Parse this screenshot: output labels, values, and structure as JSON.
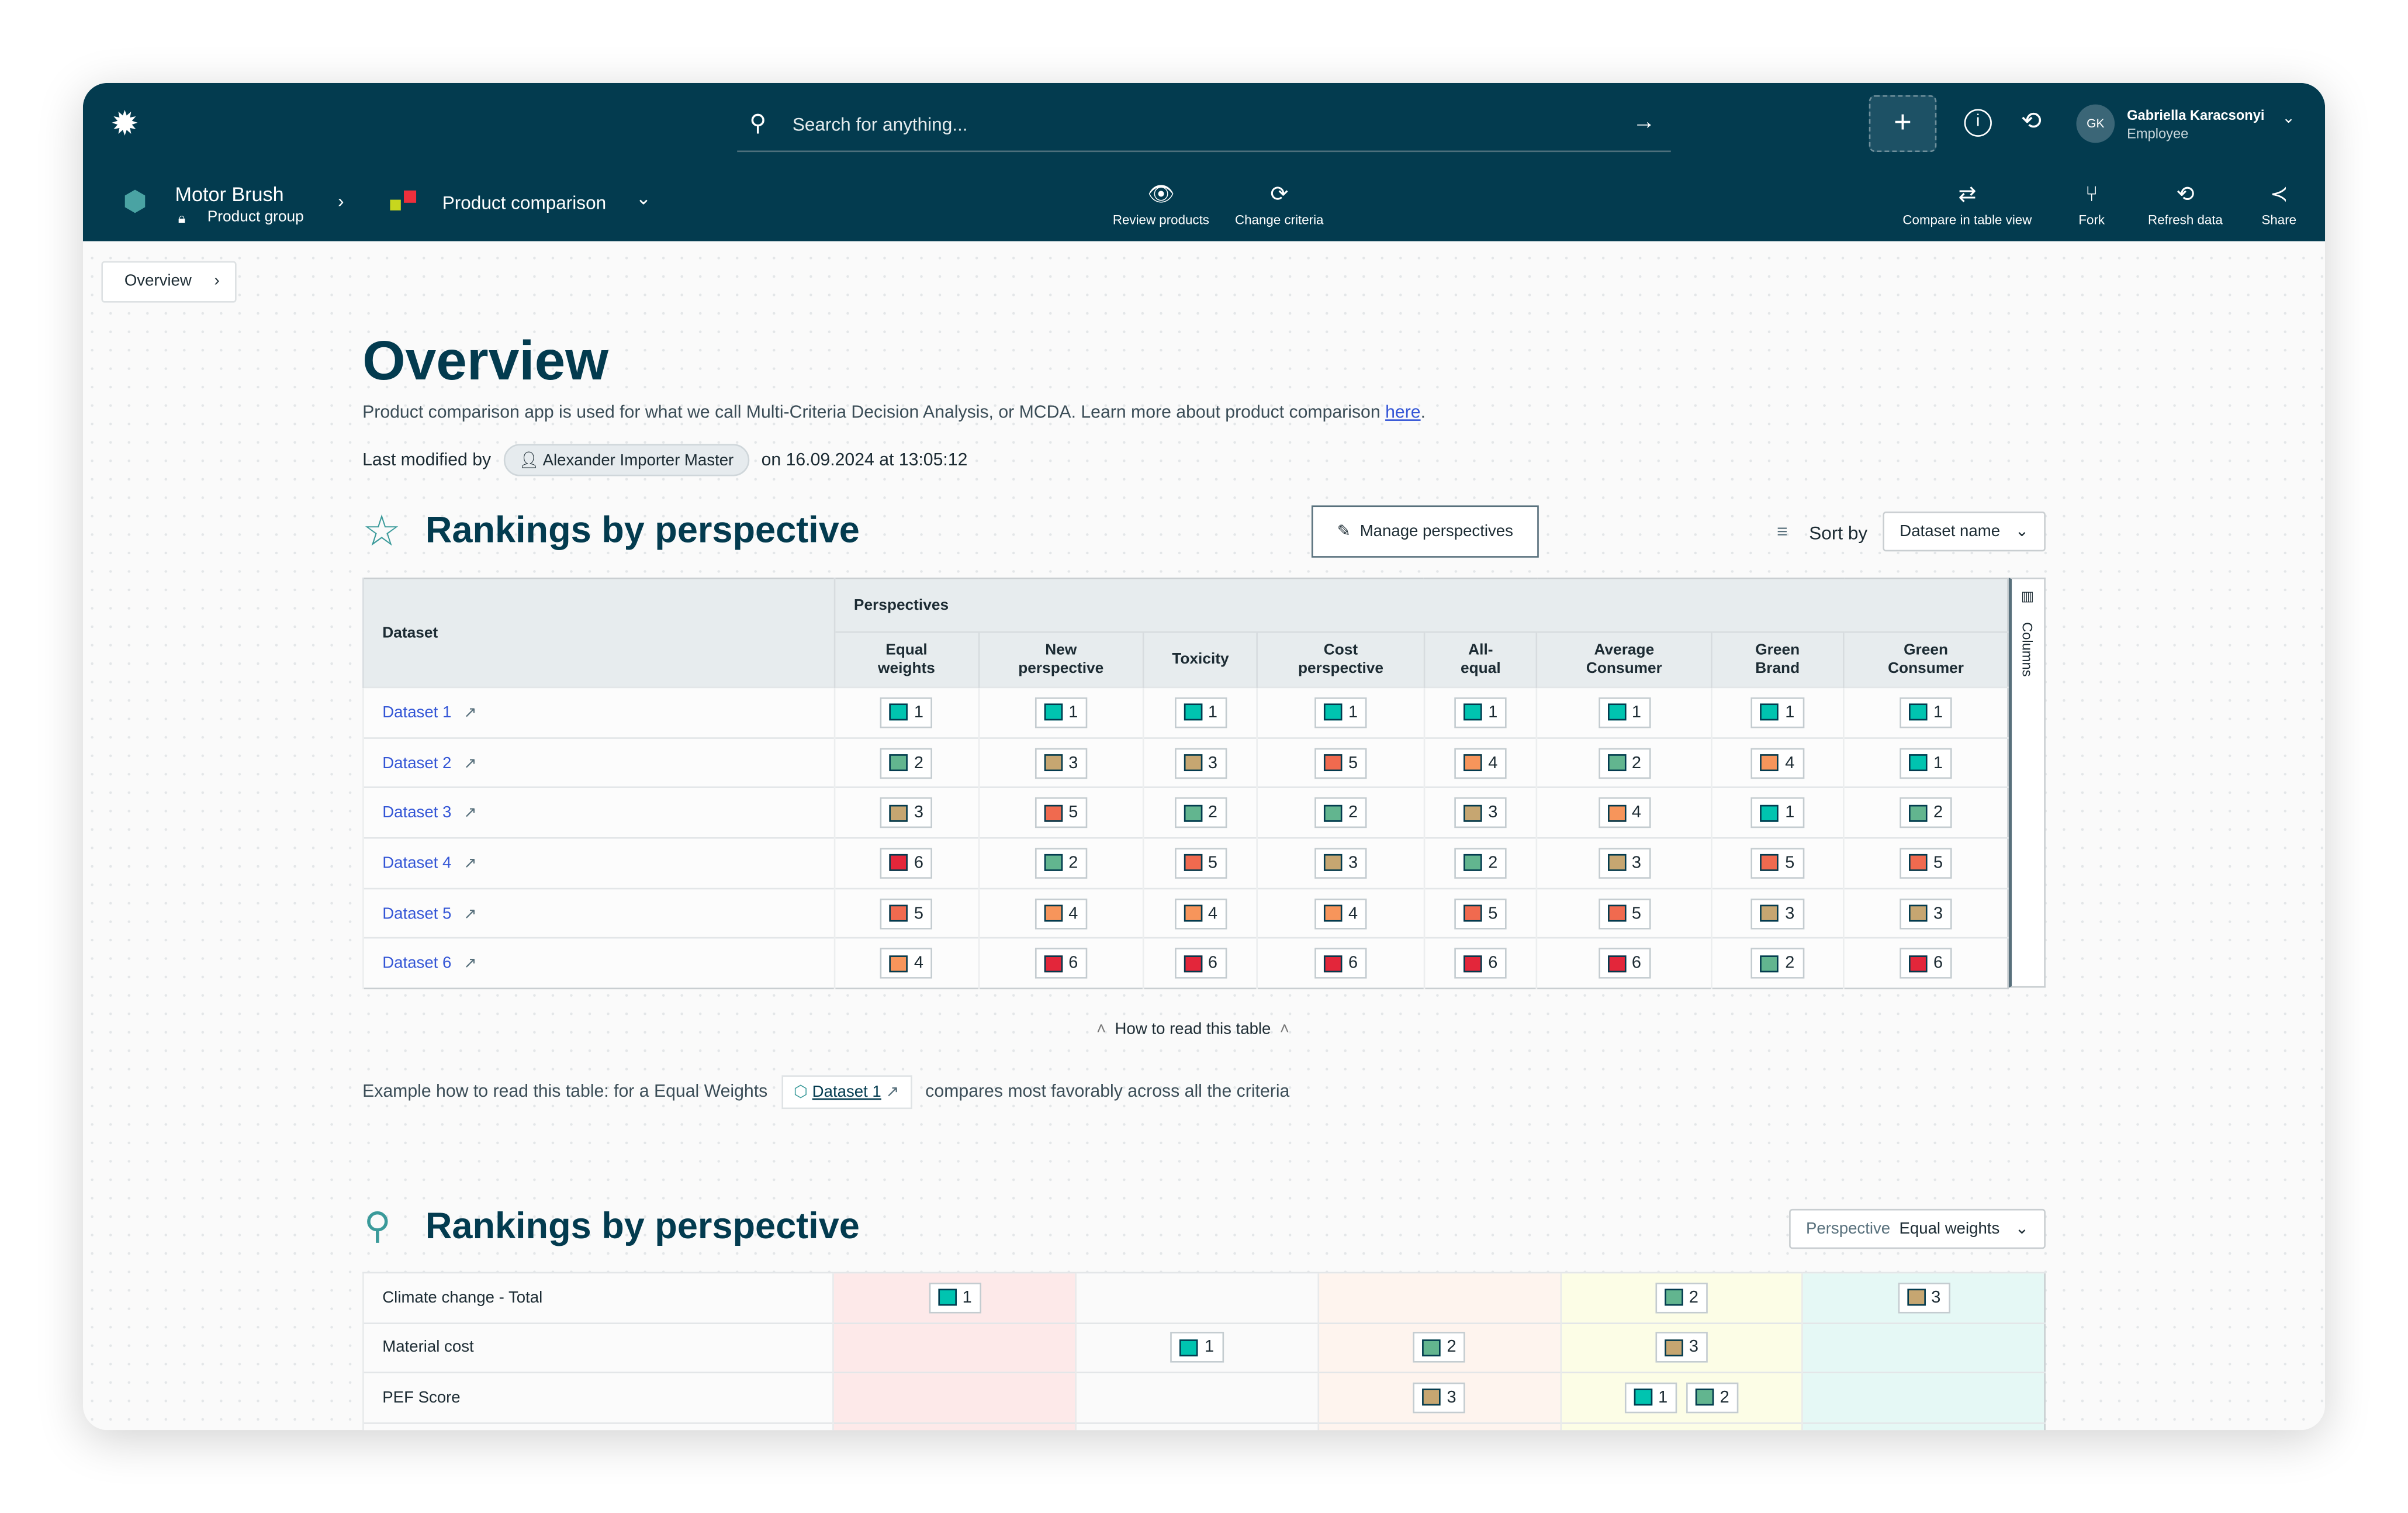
{
  "nav": {
    "search_placeholder": "Search for anything...",
    "user_initials": "GK",
    "user_name": "Gabriella Karacsonyi",
    "user_role": "Employee",
    "product": "Motor Brush",
    "product_type": "Product group",
    "app": "Product comparison",
    "tools_mid": [
      {
        "label": "Review products",
        "icon": "eye-icon"
      },
      {
        "label": "Change criteria",
        "icon": "change-icon"
      }
    ],
    "tools_right": [
      {
        "label": "Compare in table view",
        "icon": "compare-icon"
      },
      {
        "label": "Fork",
        "icon": "fork-icon"
      },
      {
        "label": "Refresh data",
        "icon": "refresh-icon"
      },
      {
        "label": "Share",
        "icon": "share-icon"
      }
    ]
  },
  "breadcrumb": "Overview",
  "title": "Overview",
  "description": "Product comparison app is used for what we call Multi-Criteria Decision Analysis, or MCDA. Learn more about product comparison ",
  "description_link": "here",
  "modified": {
    "label": "Last modified by",
    "user": "Alexander Importer Master",
    "date": "on 16.09.2024 at 13:05:12"
  },
  "section1": {
    "title": "Rankings by perspective",
    "manage": "Manage perspectives",
    "sort_label": "Sort by",
    "sort_value": "Dataset name",
    "columns_label": "Columns",
    "dataset_header": "Dataset",
    "group_header": "Perspectives",
    "perspectives": [
      "Equal weights",
      "New perspective",
      "Toxicity",
      "Cost perspective",
      "All-equal",
      "Average Consumer",
      "Green Brand",
      "Green Consumer"
    ],
    "rows": [
      {
        "name": "Dataset 1",
        "ranks": [
          1,
          1,
          1,
          1,
          1,
          1,
          1,
          1
        ]
      },
      {
        "name": "Dataset 2",
        "ranks": [
          2,
          3,
          3,
          5,
          4,
          2,
          4,
          1
        ]
      },
      {
        "name": "Dataset 3",
        "ranks": [
          3,
          5,
          2,
          2,
          3,
          4,
          1,
          2
        ]
      },
      {
        "name": "Dataset 4",
        "ranks": [
          6,
          2,
          5,
          3,
          2,
          3,
          5,
          5
        ]
      },
      {
        "name": "Dataset 5",
        "ranks": [
          5,
          4,
          4,
          4,
          5,
          5,
          3,
          3
        ]
      },
      {
        "name": "Dataset 6",
        "ranks": [
          4,
          6,
          6,
          6,
          6,
          6,
          2,
          6
        ]
      }
    ],
    "how_to": "How to read this table",
    "example_pre": "Example how to read this table: for a Equal Weights",
    "example_dataset": "Dataset 1",
    "example_post": "compares most favorably across all the criteria"
  },
  "section2": {
    "title": "Rankings by perspective",
    "perspective_label": "Perspective",
    "perspective_value": "Equal weights",
    "column_colors": [
      "#fde9e9",
      "#fafafa",
      "#fef4ee",
      "#fcfde6",
      "#e5f8f5"
    ],
    "rows": [
      {
        "label": "Climate change - Total",
        "cells": [
          [
            1
          ],
          [],
          [],
          [
            2
          ],
          [
            3
          ]
        ]
      },
      {
        "label": "Material cost",
        "cells": [
          [],
          [
            1
          ],
          [
            2
          ],
          [
            3
          ],
          []
        ]
      },
      {
        "label": "PEF Score",
        "cells": [
          [],
          [],
          [
            3
          ],
          [
            1,
            2
          ],
          []
        ]
      }
    ]
  },
  "rank_colors": {
    "1": "#00c4b0",
    "2": "#62b58f",
    "3": "#c6a671",
    "4": "#f7955b",
    "5": "#f06a4f",
    "6": "#e3263a"
  }
}
